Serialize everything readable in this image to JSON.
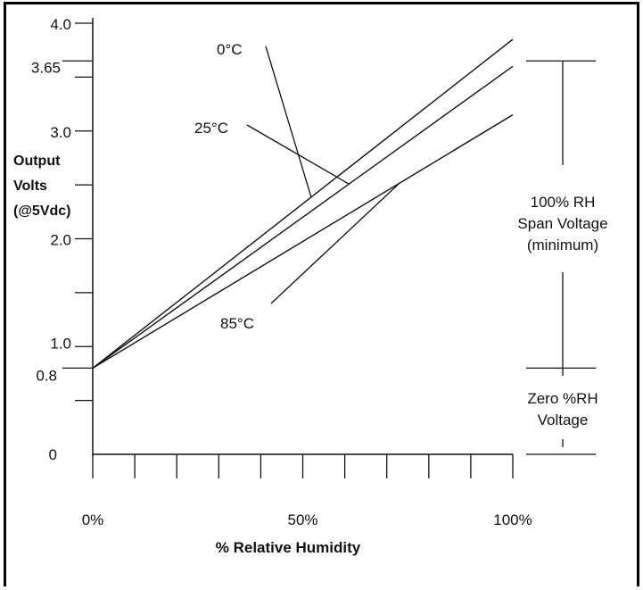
{
  "chart_data": {
    "type": "line",
    "xlabel": "% Relative Humidity",
    "ylabel": [
      "Output",
      "Volts",
      "(@5Vdc)"
    ],
    "x_ticks": [
      {
        "value": 0,
        "label": "0%"
      },
      {
        "value": 50,
        "label": "50%"
      },
      {
        "value": 100,
        "label": "100%"
      }
    ],
    "y_ticks": [
      {
        "value": 0,
        "label": "0"
      },
      {
        "value": 0.8,
        "label": "0.8"
      },
      {
        "value": 1.0,
        "label": "1.0"
      },
      {
        "value": 2.0,
        "label": "2.0"
      },
      {
        "value": 3.0,
        "label": "3.0"
      },
      {
        "value": 3.65,
        "label": "3.65"
      },
      {
        "value": 4.0,
        "label": "4.0"
      }
    ],
    "xlim": [
      0,
      100
    ],
    "ylim": [
      0,
      4.0
    ],
    "series": [
      {
        "name": "0°C",
        "x": [
          0,
          100
        ],
        "y": [
          0.8,
          3.85
        ]
      },
      {
        "name": "25°C",
        "x": [
          0,
          100
        ],
        "y": [
          0.8,
          3.6
        ]
      },
      {
        "name": "85°C",
        "x": [
          0,
          100
        ],
        "y": [
          0.8,
          3.15
        ]
      }
    ],
    "annotations": {
      "span_voltage": [
        "100% RH",
        "Span Voltage",
        "(minimum)"
      ],
      "zero_voltage": [
        "Zero %RH",
        "Voltage"
      ],
      "span_range": [
        0.8,
        3.65
      ],
      "zero_range": [
        0,
        0.8
      ]
    }
  }
}
